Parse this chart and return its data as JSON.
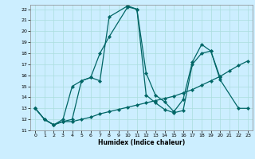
{
  "title": "",
  "xlabel": "Humidex (Indice chaleur)",
  "bg_color": "#cceeff",
  "grid_color": "#aadddd",
  "line_color": "#006666",
  "xlim": [
    -0.5,
    23.5
  ],
  "ylim": [
    11,
    22.4
  ],
  "x_ticks": [
    0,
    1,
    2,
    3,
    4,
    5,
    6,
    7,
    8,
    9,
    10,
    11,
    12,
    13,
    14,
    15,
    16,
    17,
    18,
    19,
    20,
    21,
    22,
    23
  ],
  "y_ticks": [
    11,
    12,
    13,
    14,
    15,
    16,
    17,
    18,
    19,
    20,
    21,
    22
  ],
  "series1_x": [
    0,
    1,
    2,
    3,
    4,
    5,
    6,
    7,
    8,
    10,
    11,
    12,
    13,
    14,
    15,
    16,
    17,
    18,
    19,
    20,
    22,
    23
  ],
  "series1_y": [
    13,
    12,
    11.5,
    12,
    15,
    15.5,
    15.8,
    18,
    19.5,
    22.2,
    22,
    14.2,
    13.5,
    12.9,
    12.6,
    12.8,
    17,
    18,
    18.2,
    15.6,
    13,
    13
  ],
  "series2_x": [
    0,
    1,
    2,
    3,
    4,
    5,
    6,
    7,
    8,
    9,
    10,
    11,
    12,
    13,
    14,
    15,
    16,
    17,
    18,
    19,
    20,
    21,
    22,
    23
  ],
  "series2_y": [
    13,
    12,
    11.5,
    11.8,
    11.8,
    12.0,
    12.2,
    12.5,
    12.7,
    12.9,
    13.1,
    13.3,
    13.5,
    13.7,
    13.9,
    14.1,
    14.4,
    14.7,
    15.1,
    15.5,
    15.9,
    16.4,
    16.9,
    17.3
  ],
  "series3_x": [
    0,
    1,
    2,
    3,
    4,
    5,
    6,
    7,
    8,
    10,
    11,
    12,
    13,
    14,
    15,
    16,
    17,
    18,
    19,
    20
  ],
  "series3_y": [
    13,
    12,
    11.5,
    11.8,
    12,
    15.5,
    15.8,
    15.5,
    21.3,
    22.3,
    22,
    16.2,
    14.2,
    13.6,
    12.7,
    13.8,
    17.2,
    18.8,
    18.2,
    15.8
  ]
}
